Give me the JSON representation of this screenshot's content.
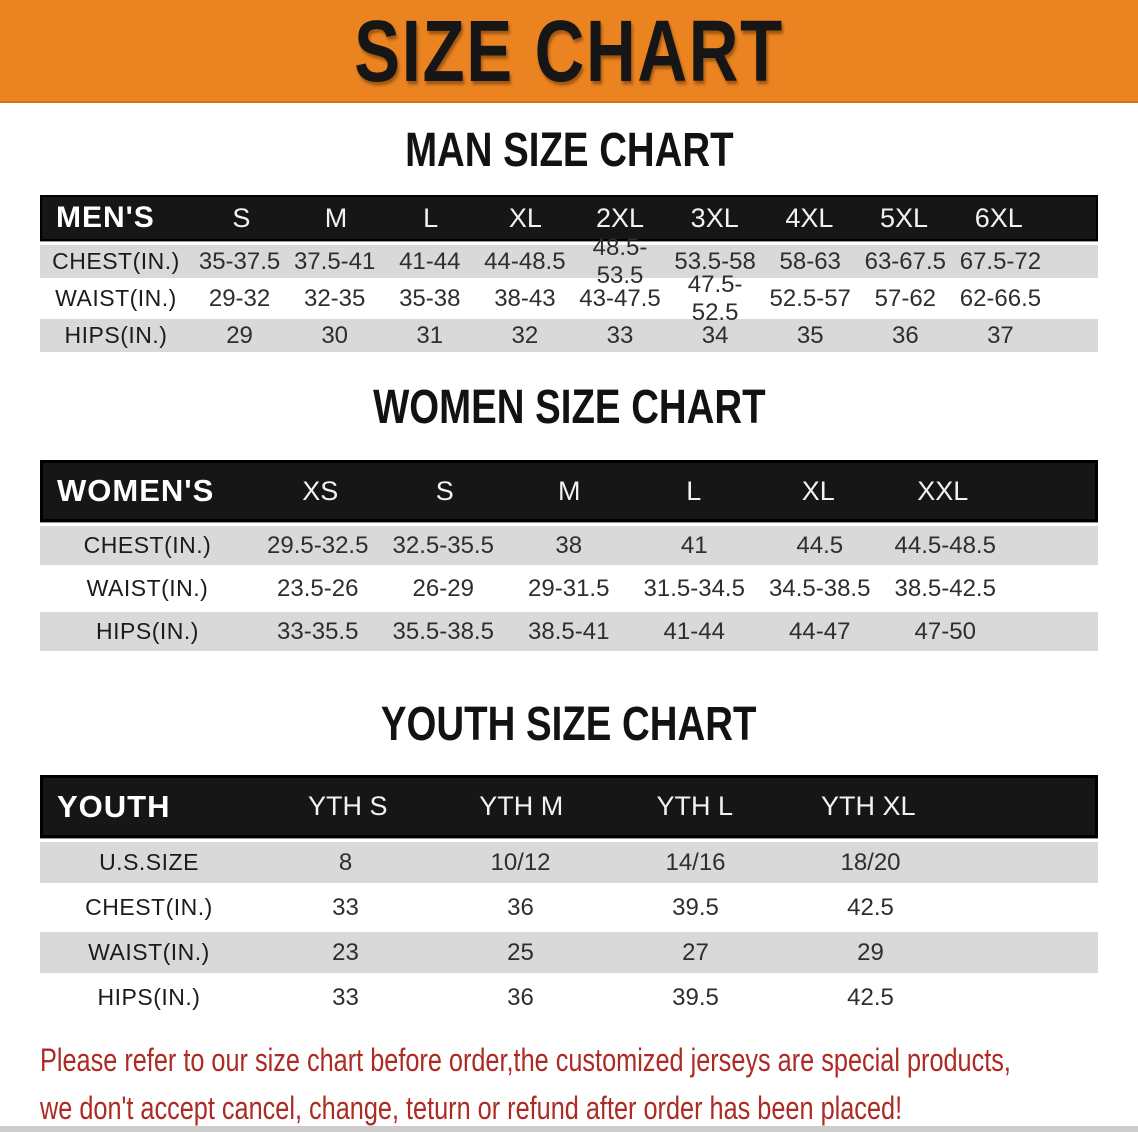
{
  "banner": {
    "title": "SIZE CHART"
  },
  "colors": {
    "banner_bg": "#EA8320",
    "header_bar": "#161616",
    "row_stripe": "#D9D9D9",
    "disclaimer_text": "#AC2B24"
  },
  "sections": [
    {
      "heading": "MAN SIZE CHART",
      "table": {
        "label": "MEN'S",
        "columns": [
          "S",
          "M",
          "L",
          "XL",
          "2XL",
          "3XL",
          "4XL",
          "5XL",
          "6XL"
        ],
        "rows": [
          {
            "label": "CHEST(IN.)",
            "values": [
              "35-37.5",
              "37.5-41",
              "41-44",
              "44-48.5",
              "48.5-53.5",
              "53.5-58",
              "58-63",
              "63-67.5",
              "67.5-72"
            ]
          },
          {
            "label": "WAIST(IN.)",
            "values": [
              "29-32",
              "32-35",
              "35-38",
              "38-43",
              "43-47.5",
              "47.5-52.5",
              "52.5-57",
              "57-62",
              "62-66.5"
            ]
          },
          {
            "label": "HIPS(IN.)",
            "values": [
              "29",
              "30",
              "31",
              "32",
              "33",
              "34",
              "35",
              "36",
              "37"
            ]
          }
        ]
      }
    },
    {
      "heading": "WOMEN SIZE CHART",
      "table": {
        "label": "WOMEN'S",
        "columns": [
          "XS",
          "S",
          "M",
          "L",
          "XL",
          "XXL"
        ],
        "rows": [
          {
            "label": "CHEST(IN.)",
            "values": [
              "29.5-32.5",
              "32.5-35.5",
              "38",
              "41",
              "44.5",
              "44.5-48.5"
            ]
          },
          {
            "label": "WAIST(IN.)",
            "values": [
              "23.5-26",
              "26-29",
              "29-31.5",
              "31.5-34.5",
              "34.5-38.5",
              "38.5-42.5"
            ]
          },
          {
            "label": "HIPS(IN.)",
            "values": [
              "33-35.5",
              "35.5-38.5",
              "38.5-41",
              "41-44",
              "44-47",
              "47-50"
            ]
          }
        ]
      }
    },
    {
      "heading": "YOUTH SIZE CHART",
      "table": {
        "label": "YOUTH",
        "columns": [
          "YTH S",
          "YTH M",
          "YTH L",
          "YTH XL"
        ],
        "rows": [
          {
            "label": "U.S.SIZE",
            "values": [
              "8",
              "10/12",
              "14/16",
              "18/20"
            ]
          },
          {
            "label": "CHEST(IN.)",
            "values": [
              "33",
              "36",
              "39.5",
              "42.5"
            ]
          },
          {
            "label": "WAIST(IN.)",
            "values": [
              "23",
              "25",
              "27",
              "29"
            ]
          },
          {
            "label": "HIPS(IN.)",
            "values": [
              "33",
              "36",
              "39.5",
              "42.5"
            ]
          }
        ]
      }
    }
  ],
  "disclaimer": {
    "line1": "Please refer to our size chart before order,the customized jerseys are special products,",
    "line2": "we don't accept cancel, change, teturn or refund after order has been placed!"
  }
}
